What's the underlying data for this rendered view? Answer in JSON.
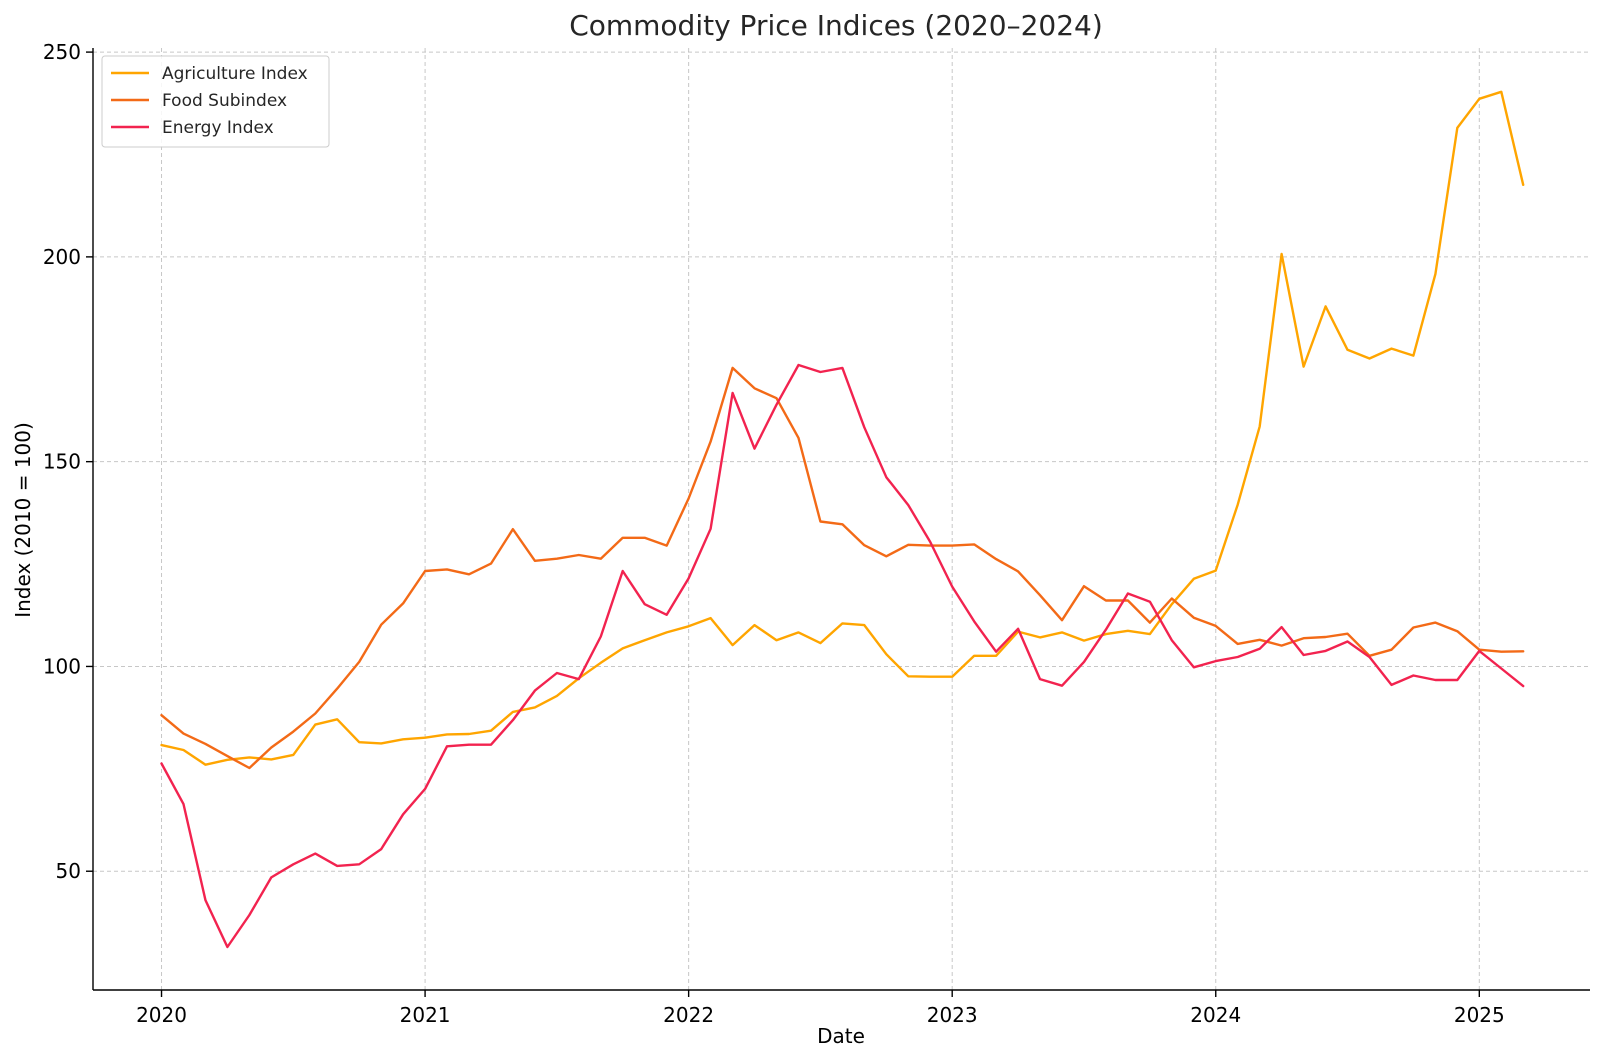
{
  "chart_data": {
    "type": "line",
    "title": "Commodity Price Indices (2020–2024)",
    "xlabel": "Date",
    "ylabel": "Index (2010 = 100)",
    "ylim": [
      21,
      251
    ],
    "xlim": [
      2019.74,
      2025.42
    ],
    "x_ticks": [
      {
        "value": 2020,
        "label": "2020"
      },
      {
        "value": 2021,
        "label": "2021"
      },
      {
        "value": 2022,
        "label": "2022"
      },
      {
        "value": 2023,
        "label": "2023"
      },
      {
        "value": 2024,
        "label": "2024"
      },
      {
        "value": 2025,
        "label": "2025"
      }
    ],
    "y_ticks": [
      {
        "value": 50,
        "label": "50"
      },
      {
        "value": 100,
        "label": "100"
      },
      {
        "value": 150,
        "label": "150"
      },
      {
        "value": 200,
        "label": "200"
      },
      {
        "value": 250,
        "label": "250"
      }
    ],
    "grid": true,
    "legend_position": "top-left",
    "x_start": "2020-01",
    "x_step": "1 month",
    "series": [
      {
        "name": "Agriculture Index",
        "color": "#ffa500",
        "values": [
          80.8,
          79.6,
          76,
          77.2,
          77.8,
          77.3,
          78.4,
          85.8,
          87.1,
          81.5,
          81.2,
          82.2,
          82.6,
          83.4,
          83.5,
          84.3,
          88.9,
          90,
          92.8,
          97.1,
          100.9,
          104.4,
          106.4,
          108.3,
          109.8,
          111.8,
          105.2,
          110.1,
          106.4,
          108.3,
          105.7,
          110.5,
          110.1,
          103,
          97.6,
          97.5,
          97.5,
          102.6,
          102.6,
          108.5,
          107.1,
          108.3,
          106.3,
          107.9,
          108.7,
          107.9,
          115.2,
          121.4,
          123.4,
          139.5,
          158.6,
          200.7,
          173.2,
          187.9,
          177.3,
          175.2,
          177.6,
          175.9,
          195.8,
          231.5,
          238.6,
          240.3,
          217.6
        ]
      },
      {
        "name": "Food Subindex",
        "color": "#f36a17",
        "values": [
          88.1,
          83.6,
          81.1,
          78.1,
          75.2,
          80.2,
          84.1,
          88.5,
          94.6,
          101.1,
          110.2,
          115.4,
          123.3,
          123.7,
          122.5,
          125.1,
          133.5,
          125.8,
          126.3,
          127.2,
          126.3,
          131.4,
          131.4,
          129.5,
          141,
          154.9,
          172.9,
          167.9,
          165.5,
          155.8,
          135.4,
          134.7,
          129.6,
          126.9,
          129.7,
          129.5,
          129.5,
          129.8,
          126.2,
          123.2,
          117.4,
          111.3,
          119.6,
          116.1,
          116.1,
          110.7,
          116.6,
          111.9,
          109.9,
          105.5,
          106.5,
          105.1,
          106.9,
          107.2,
          108,
          102.6,
          104.1,
          109.5,
          110.7,
          108.6,
          104.1,
          103.6,
          103.7
        ]
      },
      {
        "name": "Energy Index",
        "color": "#f2234f",
        "values": [
          76.3,
          66.4,
          42.9,
          31.5,
          39.3,
          48.5,
          51.7,
          54.3,
          51.3,
          51.7,
          55.4,
          63.9,
          70.1,
          80.5,
          80.9,
          80.9,
          86.9,
          94.1,
          98.4,
          96.9,
          107.3,
          123.3,
          115.2,
          112.6,
          121.5,
          133.6,
          166.8,
          153.2,
          163.9,
          173.6,
          171.9,
          172.9,
          158.4,
          146.2,
          139.4,
          130.4,
          119.5,
          111,
          103.6,
          109.2,
          96.9,
          95.3,
          101.1,
          109,
          117.8,
          115.8,
          106.4,
          99.8,
          101.3,
          102.3,
          104.3,
          109.6,
          102.8,
          103.8,
          106.1,
          102.3,
          95.5,
          97.8,
          96.7,
          96.7,
          103.8,
          99.5,
          95.2
        ]
      }
    ]
  }
}
